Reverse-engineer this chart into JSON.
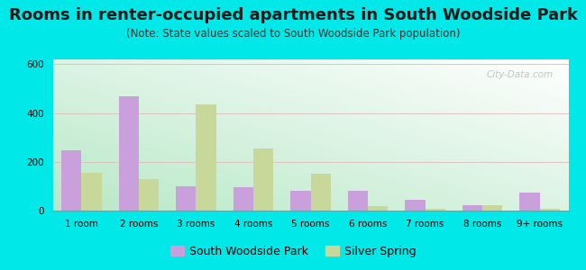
{
  "title": "Rooms in renter-occupied apartments in South Woodside Park",
  "subtitle": "(Note: State values scaled to South Woodside Park population)",
  "categories": [
    "1 room",
    "2 rooms",
    "3 rooms",
    "4 rooms",
    "5 rooms",
    "6 rooms",
    "7 rooms",
    "8 rooms",
    "9+ rooms"
  ],
  "south_woodside_park": [
    248,
    468,
    100,
    97,
    80,
    82,
    45,
    22,
    75
  ],
  "silver_spring": [
    155,
    128,
    435,
    255,
    150,
    18,
    8,
    22,
    8
  ],
  "swp_color": "#c9a0dc",
  "ss_color": "#c8d89a",
  "ylim": [
    0,
    620
  ],
  "yticks": [
    0,
    200,
    400,
    600
  ],
  "background_outer": "#00e8e8",
  "watermark": "City-Data.com",
  "legend_swp": "South Woodside Park",
  "legend_ss": "Silver Spring",
  "bar_width": 0.35,
  "title_fontsize": 13,
  "subtitle_fontsize": 8.5,
  "tick_fontsize": 7.5,
  "legend_fontsize": 9
}
